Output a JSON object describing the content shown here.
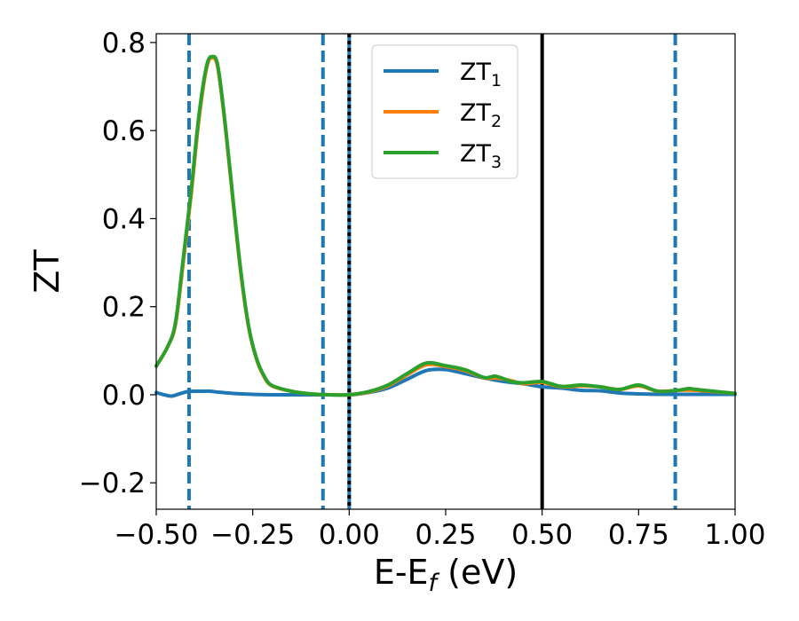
{
  "chart_data": {
    "type": "line",
    "xlabel": "E-E",
    "xlabel_sub": "f",
    "xlabel_unit": " (eV)",
    "ylabel": "ZT",
    "xlim": [
      -0.5,
      1.0
    ],
    "ylim": [
      -0.26,
      0.82
    ],
    "x_ticks": [
      -0.5,
      -0.25,
      0.0,
      0.25,
      0.5,
      0.75,
      1.0
    ],
    "x_tick_labels": [
      "−0.50",
      "−0.25",
      "0.00",
      "0.25",
      "0.50",
      "0.75",
      "1.00"
    ],
    "y_ticks": [
      -0.2,
      0.0,
      0.2,
      0.4,
      0.6,
      0.8
    ],
    "y_tick_labels": [
      "−0.2",
      "0.0",
      "0.2",
      "0.4",
      "0.6",
      "0.8"
    ],
    "grid": false,
    "legend_position": "top-center",
    "series": [
      {
        "name": "ZT",
        "sub": "1",
        "color": "#1f77b4",
        "points": [
          [
            -0.5,
            0.005
          ],
          [
            -0.48,
            0.0
          ],
          [
            -0.46,
            -0.003
          ],
          [
            -0.44,
            0.002
          ],
          [
            -0.42,
            0.007
          ],
          [
            -0.4,
            0.008
          ],
          [
            -0.38,
            0.008
          ],
          [
            -0.36,
            0.008
          ],
          [
            -0.34,
            0.006
          ],
          [
            -0.3,
            0.003
          ],
          [
            -0.25,
            0.001
          ],
          [
            -0.2,
            0.0
          ],
          [
            -0.1,
            0.0
          ],
          [
            0.0,
            0.0
          ],
          [
            0.05,
            0.005
          ],
          [
            0.1,
            0.015
          ],
          [
            0.15,
            0.035
          ],
          [
            0.2,
            0.055
          ],
          [
            0.25,
            0.057
          ],
          [
            0.3,
            0.048
          ],
          [
            0.35,
            0.038
          ],
          [
            0.4,
            0.03
          ],
          [
            0.45,
            0.025
          ],
          [
            0.5,
            0.018
          ],
          [
            0.55,
            0.015
          ],
          [
            0.6,
            0.01
          ],
          [
            0.65,
            0.009
          ],
          [
            0.7,
            0.004
          ],
          [
            0.75,
            0.002
          ],
          [
            0.8,
            0.001
          ],
          [
            0.85,
            0.001
          ],
          [
            0.9,
            0.001
          ],
          [
            1.0,
            0.001
          ]
        ]
      },
      {
        "name": "ZT",
        "sub": "2",
        "color": "#ff7f0e",
        "points": [
          [
            -0.5,
            0.065
          ],
          [
            -0.47,
            0.11
          ],
          [
            -0.45,
            0.16
          ],
          [
            -0.43,
            0.3
          ],
          [
            -0.41,
            0.45
          ],
          [
            -0.39,
            0.62
          ],
          [
            -0.37,
            0.74
          ],
          [
            -0.355,
            0.765
          ],
          [
            -0.34,
            0.74
          ],
          [
            -0.32,
            0.6
          ],
          [
            -0.3,
            0.43
          ],
          [
            -0.28,
            0.27
          ],
          [
            -0.26,
            0.15
          ],
          [
            -0.24,
            0.08
          ],
          [
            -0.22,
            0.04
          ],
          [
            -0.2,
            0.02
          ],
          [
            -0.15,
            0.008
          ],
          [
            -0.1,
            0.002
          ],
          [
            -0.05,
            0.0
          ],
          [
            0.0,
            0.0
          ],
          [
            0.05,
            0.006
          ],
          [
            0.1,
            0.02
          ],
          [
            0.15,
            0.045
          ],
          [
            0.2,
            0.068
          ],
          [
            0.25,
            0.064
          ],
          [
            0.3,
            0.055
          ],
          [
            0.35,
            0.038
          ],
          [
            0.38,
            0.038
          ],
          [
            0.42,
            0.032
          ],
          [
            0.45,
            0.025
          ],
          [
            0.5,
            0.028
          ],
          [
            0.55,
            0.018
          ],
          [
            0.6,
            0.02
          ],
          [
            0.65,
            0.018
          ],
          [
            0.7,
            0.012
          ],
          [
            0.75,
            0.02
          ],
          [
            0.8,
            0.008
          ],
          [
            0.85,
            0.01
          ],
          [
            0.9,
            0.01
          ],
          [
            1.0,
            0.003
          ]
        ]
      },
      {
        "name": "ZT",
        "sub": "3",
        "color": "#2ca02c",
        "points": [
          [
            -0.5,
            0.065
          ],
          [
            -0.47,
            0.11
          ],
          [
            -0.45,
            0.165
          ],
          [
            -0.43,
            0.31
          ],
          [
            -0.41,
            0.46
          ],
          [
            -0.39,
            0.63
          ],
          [
            -0.37,
            0.745
          ],
          [
            -0.355,
            0.768
          ],
          [
            -0.34,
            0.745
          ],
          [
            -0.32,
            0.605
          ],
          [
            -0.3,
            0.435
          ],
          [
            -0.28,
            0.275
          ],
          [
            -0.26,
            0.153
          ],
          [
            -0.24,
            0.082
          ],
          [
            -0.22,
            0.042
          ],
          [
            -0.2,
            0.021
          ],
          [
            -0.15,
            0.008
          ],
          [
            -0.1,
            0.002
          ],
          [
            -0.05,
            0.0
          ],
          [
            0.0,
            0.0
          ],
          [
            0.05,
            0.007
          ],
          [
            0.1,
            0.022
          ],
          [
            0.15,
            0.048
          ],
          [
            0.2,
            0.072
          ],
          [
            0.25,
            0.066
          ],
          [
            0.3,
            0.057
          ],
          [
            0.35,
            0.039
          ],
          [
            0.38,
            0.042
          ],
          [
            0.42,
            0.03
          ],
          [
            0.45,
            0.027
          ],
          [
            0.5,
            0.03
          ],
          [
            0.55,
            0.019
          ],
          [
            0.6,
            0.022
          ],
          [
            0.65,
            0.018
          ],
          [
            0.7,
            0.012
          ],
          [
            0.75,
            0.022
          ],
          [
            0.8,
            0.008
          ],
          [
            0.85,
            0.01
          ],
          [
            0.88,
            0.014
          ],
          [
            0.9,
            0.012
          ],
          [
            1.0,
            0.003
          ]
        ]
      }
    ],
    "vlines": [
      {
        "x": -0.415,
        "style": "dashed",
        "color": "#1f77b4"
      },
      {
        "x": -0.068,
        "style": "dashed",
        "color": "#1f77b4"
      },
      {
        "x": 0.0,
        "style": "solid",
        "color": "#1f77b4"
      },
      {
        "x": 0.0,
        "style": "dotted",
        "color": "#000000"
      },
      {
        "x": 0.5,
        "style": "solid",
        "color": "#000000"
      },
      {
        "x": 0.845,
        "style": "dashed",
        "color": "#1f77b4"
      }
    ]
  }
}
